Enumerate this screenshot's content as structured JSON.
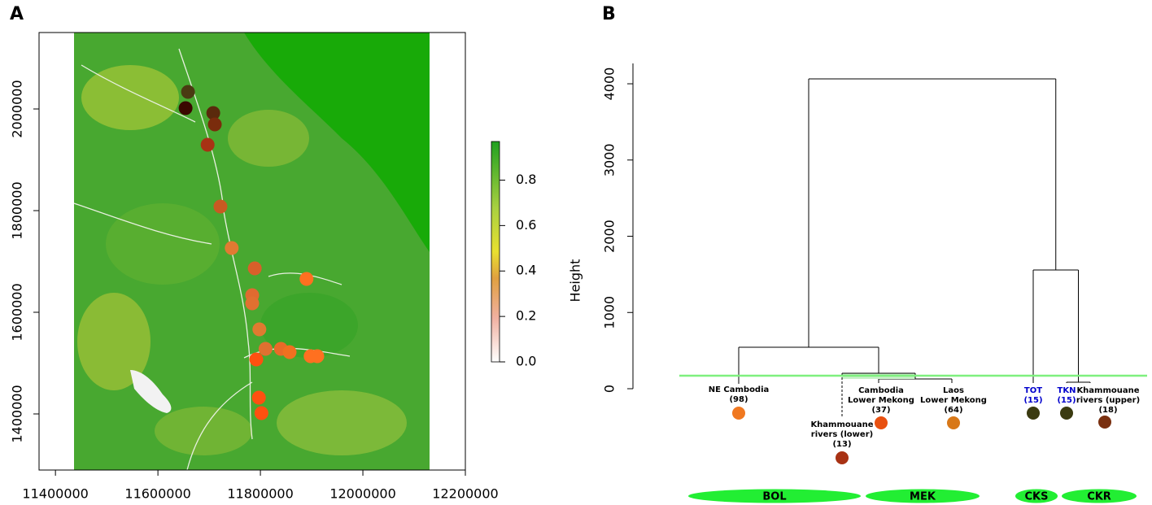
{
  "chart_data": [
    {
      "type": "scatter",
      "panel": "A",
      "xlim": [
        11368000,
        12200000
      ],
      "ylim": [
        1289600,
        2150400
      ],
      "xticks": [
        11400000,
        11600000,
        11800000,
        12000000,
        12200000
      ],
      "yticks": [
        1400000,
        1600000,
        1800000,
        2000000
      ],
      "x": [
        11658700,
        11654000,
        11708000,
        11711000,
        11697000,
        11722000,
        11744000,
        11789000,
        11784000,
        11784000,
        11798000,
        11890000,
        11810000,
        11840000,
        11857000,
        11792000,
        11898000,
        11911000,
        11797000,
        11802000
      ],
      "values": [
        2033600,
        2001600,
        1992000,
        1969600,
        1929600,
        1808000,
        1726400,
        1686400,
        1633600,
        1617600,
        1566400,
        1665600,
        1528000,
        1528000,
        1521600,
        1507200,
        1513600,
        1513600,
        1432000,
        1401600
      ],
      "colors": [
        "#4a3a12",
        "#3a0800",
        "#5a2a0c",
        "#7a2c0c",
        "#a83214",
        "#c85a22",
        "#e07a32",
        "#d8602a",
        "#e06a30",
        "#e07030",
        "#e07a30",
        "#ff7020",
        "#e07030",
        "#e86a28",
        "#f07020",
        "#ff5010",
        "#ff7020",
        "#ff7020",
        "#ff5010",
        "#ff5010"
      ],
      "colorbar": {
        "lim": [
          0,
          0.97
        ],
        "ticks": [
          {
            "value": 0,
            "label": "0.0"
          },
          0.2,
          0.4,
          0.6,
          0.8
        ]
      }
    },
    {
      "type": "dendrogram",
      "panel": "B",
      "ylabel": "Height",
      "ylim": [
        0,
        4267
      ],
      "yticks": [
        0,
        1000,
        2000,
        3000,
        4000
      ],
      "cut_height": 171,
      "leaves": [
        {
          "label": [
            "NE Cambodia",
            "(98)"
          ],
          "color": "#f07820",
          "label_color": "#000000"
        },
        {
          "label": [
            "Khammouane",
            "rivers (lower)",
            "(13)"
          ],
          "color": "#a83214",
          "label_color": "#000000"
        },
        {
          "label": [
            "Cambodia",
            "Lower Mekong",
            "(37)"
          ],
          "color": "#e85010",
          "label_color": "#000000"
        },
        {
          "label": [
            "Laos",
            "Lower Mekong",
            "(64)"
          ],
          "color": "#d87818",
          "label_color": "#000000"
        },
        {
          "label": [
            "TOT",
            "(15)"
          ],
          "color": "#3a3a10",
          "label_color": "#0000cc"
        },
        {
          "label": [
            "TKN",
            "(15)"
          ],
          "color": "#3a3a10",
          "label_color": "#0000cc"
        },
        {
          "label": [
            "Khammouane",
            "rivers (upper)",
            "(18)"
          ],
          "color": "#7a3010",
          "label_color": "#000000"
        }
      ],
      "merges": [
        {
          "children": [
            -3,
            -4
          ],
          "height": 128
        },
        {
          "children": [
            -6,
            -7
          ],
          "height": 85
        },
        {
          "children": [
            -2,
            1
          ],
          "height": 203
        },
        {
          "children": [
            -1,
            3
          ],
          "height": 544
        },
        {
          "children": [
            -5,
            2
          ],
          "height": 1557
        },
        {
          "children": [
            4,
            5
          ],
          "height": 4064
        }
      ],
      "groups": [
        {
          "label": "BOL"
        },
        {
          "label": "MEK"
        },
        {
          "label": "CKS"
        },
        {
          "label": "CKR"
        }
      ]
    }
  ]
}
